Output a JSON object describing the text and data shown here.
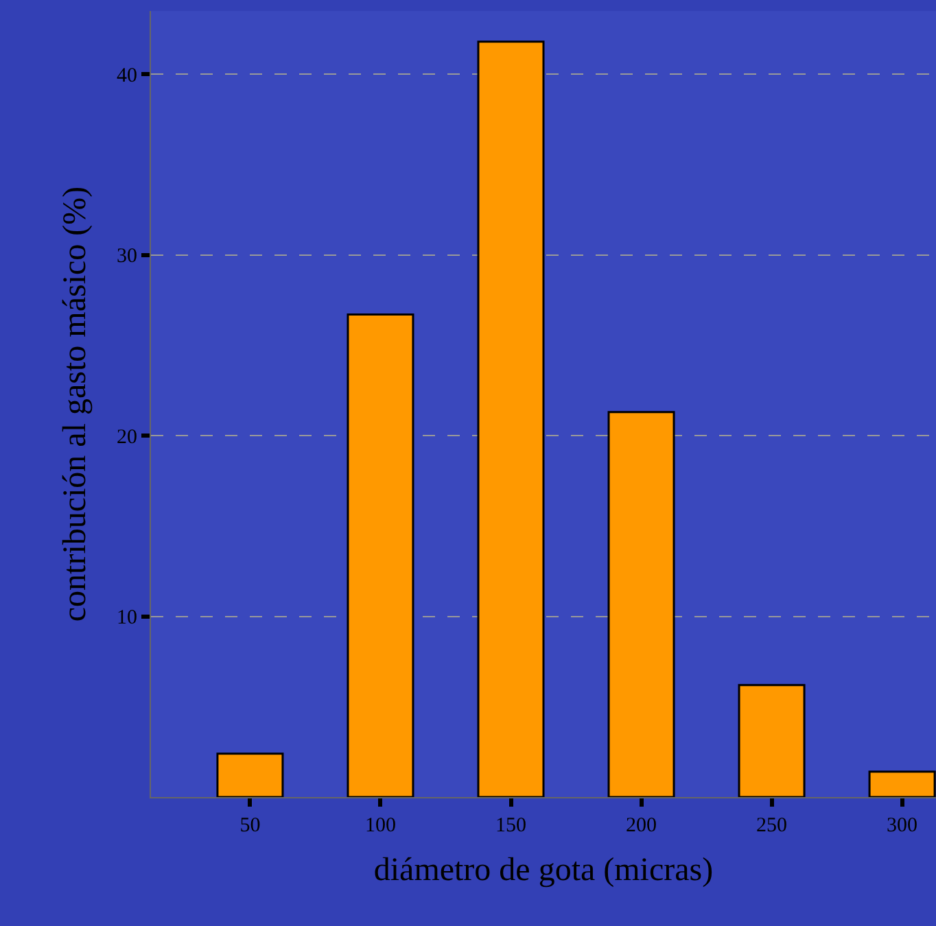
{
  "chart_data": {
    "type": "bar",
    "xlabel": "diámetro de gota (micras)",
    "ylabel": "contribución al gasto másico (%)",
    "x": [
      50,
      100,
      150,
      200,
      250,
      300
    ],
    "values": [
      2.4,
      26.7,
      41.8,
      21.3,
      6.2,
      1.4
    ],
    "color": "#ff9900",
    "xlim": [
      12,
      313
    ],
    "xticks": [
      50,
      100,
      150,
      200,
      250,
      300
    ],
    "ylim": [
      0,
      43.5
    ],
    "yticks": [
      10,
      20,
      30,
      40
    ],
    "grid": "y",
    "legend": false
  }
}
